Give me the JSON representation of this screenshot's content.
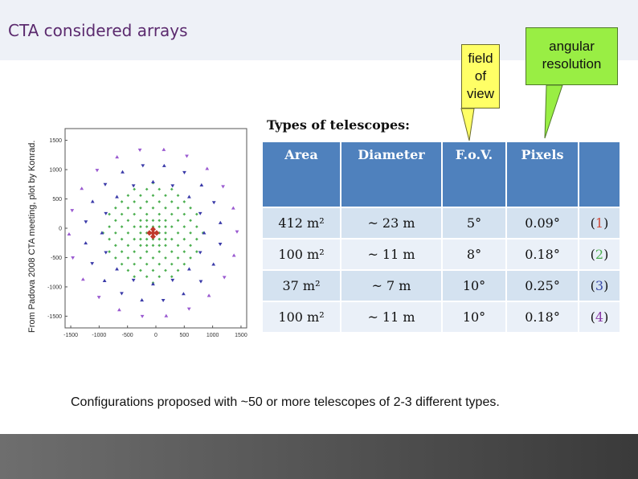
{
  "slide": {
    "title": "CTA considered arrays",
    "callouts": {
      "fov": "field of view",
      "angular": "angular resolution"
    },
    "plot_credit": "From Padova 2008 CTA meeting,  plot by Konrad.",
    "types_label": "Types of telescopes:",
    "table": {
      "headers": [
        "Area",
        "Diameter",
        "F.o.V.",
        "Pixels",
        ""
      ],
      "rows": [
        {
          "area": "412 m²",
          "diameter": "~ 23 m",
          "fov": "5°",
          "pixels": "0.09°",
          "tag_open": "(",
          "tag_num": "1",
          "tag_close": ")",
          "tag_color": "#d04a3a"
        },
        {
          "area": "100 m²",
          "diameter": "~ 11 m",
          "fov": "8°",
          "pixels": "0.18°",
          "tag_open": "(",
          "tag_num": "2",
          "tag_close": ")",
          "tag_color": "#4caf50"
        },
        {
          "area": "37 m²",
          "diameter": "~ 7 m",
          "fov": "10°",
          "pixels": "0.25°",
          "tag_open": "(",
          "tag_num": "3",
          "tag_close": ")",
          "tag_color": "#3a4aa8"
        },
        {
          "area": "100 m²",
          "diameter": "~ 11 m",
          "fov": "10°",
          "pixels": "0.18°",
          "tag_open": "(",
          "tag_num": "4",
          "tag_close": ")",
          "tag_color": "#8a3aa8"
        }
      ]
    },
    "configurations": "Configurations proposed with ~50 or more telescopes of 2-3 different types."
  },
  "chart_data": {
    "type": "scatter",
    "xlim": [
      -1600,
      1600
    ],
    "ylim": [
      -1700,
      1700
    ],
    "xticks": [
      "-1500",
      "-1000",
      "-500",
      "0",
      "500",
      "1000",
      "1500"
    ],
    "yticks": [
      "1500",
      "1000",
      "500",
      "0",
      "-500",
      "-1000",
      "-1500"
    ],
    "grid": false
  }
}
